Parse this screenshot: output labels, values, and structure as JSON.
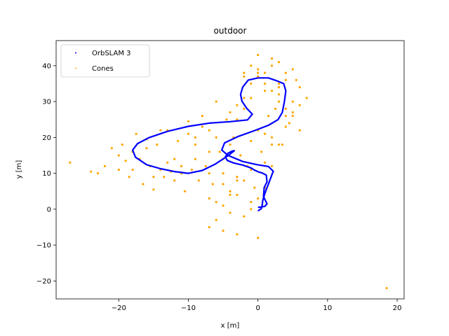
{
  "chart_data": {
    "type": "scatter",
    "title": "outdoor",
    "xlabel": "x [m]",
    "ylabel": "y [m]",
    "xlim": [
      -29,
      21
    ],
    "ylim": [
      -25,
      47
    ],
    "xticks": [
      -20,
      -10,
      0,
      10,
      20
    ],
    "yticks": [
      -20,
      -10,
      0,
      10,
      20,
      30,
      40
    ],
    "grid": false,
    "legend_position": "top-left",
    "series": [
      {
        "name": "OrbSLAM 3",
        "style": "line",
        "color": "#0000ff",
        "x": [
          0,
          1,
          1.3,
          0.8,
          0.9,
          1.3,
          1.2,
          0.6,
          0.2,
          -0.5,
          -1,
          -2.2,
          -3.5,
          -4.4,
          -4.7,
          -4.3,
          -3.7,
          -3.4,
          -4.3,
          -6.2,
          -8,
          -10,
          -12,
          -14,
          -16,
          -17.6,
          -18,
          -17.3,
          -15.6,
          -13,
          -10,
          -7,
          -4,
          -1.5,
          -0.8,
          -1.6,
          -2.3,
          -2.5,
          -2.2,
          -1.4,
          0,
          1.5,
          2.7,
          3.7,
          4,
          3.8,
          3.5,
          2.9,
          1.5,
          -0.5,
          -2.8,
          -4.8,
          -5.2,
          -4.3,
          -2.2,
          -0.1,
          1.5,
          2.2,
          1.7,
          1.1,
          0.7,
          0.6,
          0.5,
          0
        ],
        "y": [
          0.5,
          0.8,
          1.5,
          3.5,
          6.1,
          7.6,
          9.5,
          10.1,
          10.3,
          10.9,
          11.5,
          12.3,
          12.9,
          13.6,
          14.6,
          15.6,
          16.2,
          16.3,
          14.9,
          12.5,
          10.8,
          10,
          10.5,
          11.3,
          12.4,
          14.5,
          16.5,
          18.3,
          20,
          21.7,
          23.1,
          24,
          24.4,
          24.9,
          26.5,
          28.1,
          30.1,
          32,
          34,
          36,
          36.6,
          36.6,
          35.8,
          35,
          33,
          30,
          27,
          25,
          23.4,
          21.9,
          20.3,
          18.5,
          16.5,
          15,
          13.3,
          12.4,
          11.9,
          10.6,
          8,
          5,
          2.5,
          1,
          0.2,
          -0.5
        ]
      },
      {
        "name": "Cones",
        "style": "points",
        "color": "#ffa500",
        "x": [
          -27,
          -24,
          -23,
          -22,
          -21,
          -20,
          -19.5,
          -19,
          -18.5,
          -18,
          -17.5,
          -17,
          -16.5,
          -16,
          -15.5,
          -15,
          -14.5,
          -14,
          -13.5,
          -13,
          -12.5,
          -12,
          -11.5,
          -11,
          -10.5,
          -10,
          -9.5,
          -9,
          -8.5,
          -8,
          -7.5,
          -7,
          -6.5,
          -6,
          -5.5,
          -5,
          -4.5,
          -4,
          -3.5,
          -3,
          -2.5,
          -2,
          -1.5,
          -1,
          -0.5,
          0,
          0.5,
          1,
          1.5,
          2,
          2.5,
          3,
          3.5,
          4,
          4.5,
          5,
          5.5,
          6,
          7,
          -20,
          -18,
          -16,
          -14,
          -12,
          -10,
          -8,
          -6,
          -4,
          -2,
          0,
          2,
          4,
          -15,
          -13,
          -11,
          -9,
          -7,
          -5,
          -3,
          -1,
          1,
          3,
          5,
          -9,
          -7,
          -5,
          -3,
          -1,
          1,
          3,
          -7,
          -5,
          -3,
          -1,
          1,
          -6,
          -4,
          -2,
          0,
          2,
          -7,
          -5,
          -3,
          -1,
          -6,
          -4,
          -2,
          0,
          -1,
          0,
          1,
          2,
          3,
          4,
          5,
          6,
          2,
          3,
          4,
          5,
          6,
          -2,
          0,
          2,
          3,
          4,
          -4,
          -3,
          -2,
          -1,
          0,
          1,
          18.5
        ],
        "y": [
          13,
          10.5,
          10,
          12,
          17,
          11,
          18,
          13.5,
          9,
          11,
          21,
          14,
          7,
          19.5,
          12,
          5.5,
          18,
          11,
          9,
          22,
          10.5,
          8,
          19,
          12,
          5,
          24.5,
          11,
          18,
          8,
          26,
          12,
          22,
          7,
          30,
          16,
          10,
          25,
          5,
          20,
          8,
          15,
          38,
          12,
          31,
          6,
          39,
          16,
          33,
          26,
          40,
          28,
          35,
          18,
          38,
          24,
          30,
          36,
          29,
          31,
          15,
          16,
          17,
          22,
          14,
          21,
          23,
          20,
          18,
          28,
          22,
          18,
          26,
          9,
          13,
          10,
          20,
          16,
          14,
          25,
          19,
          21,
          34,
          27,
          14,
          10,
          7,
          9,
          11,
          13,
          32,
          3,
          1,
          4,
          2,
          6,
          -3,
          -1,
          -2,
          3,
          12,
          -5,
          -6,
          -7,
          0,
          2,
          4,
          8,
          -8,
          40,
          38,
          35,
          33,
          30,
          28,
          26,
          22,
          42,
          41,
          36,
          39,
          34,
          37,
          43,
          20,
          18,
          23,
          27,
          29,
          31,
          35,
          37,
          38,
          -22
        ]
      }
    ]
  }
}
